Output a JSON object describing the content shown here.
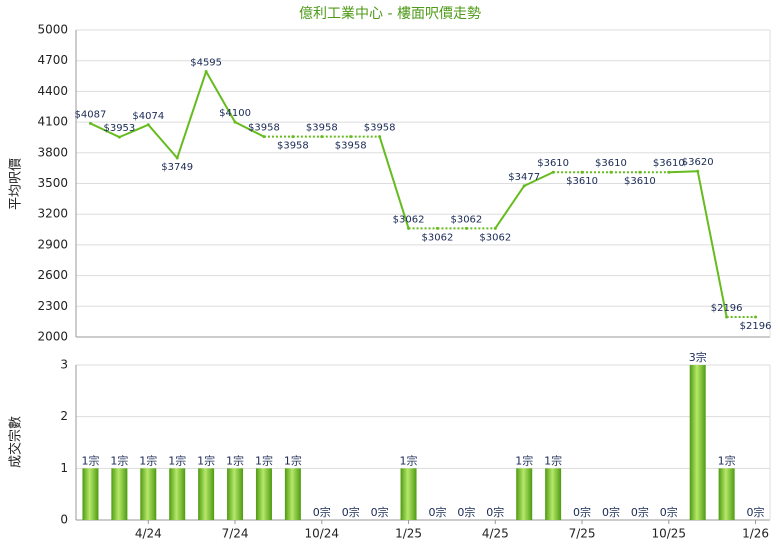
{
  "chart_data": [
    {
      "type": "line",
      "title": "億利工業中心 - 樓面呎價走勢",
      "y_label": "平均呎價",
      "color": "#66bb1e",
      "values": [
        4087,
        3953,
        4074,
        3749,
        4595,
        4100,
        3958,
        3958,
        3958,
        3958,
        3958,
        3062,
        3062,
        3062,
        3062,
        3477,
        3610,
        3610,
        3610,
        3610,
        3610,
        3620,
        2196,
        2196
      ],
      "value_labels": [
        "$4087",
        "$3953",
        "$4074",
        "$3749",
        "$4595",
        "$4100",
        "$3958",
        "$3958",
        "$3958",
        "$3958",
        "$3958",
        "$3062",
        "$3062",
        "$3062",
        "$3062",
        "$3477",
        "$3610",
        "$3610",
        "$3610",
        "$3610",
        "$3610",
        "$3620",
        "$2196",
        "$2196"
      ],
      "ylim": [
        2000,
        5000
      ],
      "yticks": [
        2000,
        2300,
        2600,
        2900,
        3200,
        3500,
        3800,
        4100,
        4400,
        4700,
        5000
      ],
      "grid": true
    },
    {
      "type": "bar",
      "y_label": "成交宗數",
      "color": "#6fbf22",
      "categories": [
        null,
        null,
        "4/24",
        null,
        null,
        "7/24",
        null,
        null,
        "10/24",
        null,
        null,
        "1/25",
        null,
        null,
        "4/25",
        null,
        null,
        "7/25",
        null,
        null,
        "10/25",
        null,
        null,
        "1/26"
      ],
      "values": [
        1,
        1,
        1,
        1,
        1,
        1,
        1,
        1,
        0,
        0,
        0,
        1,
        0,
        0,
        0,
        1,
        1,
        0,
        0,
        0,
        0,
        3,
        1,
        0
      ],
      "value_labels": [
        "1宗",
        "1宗",
        "1宗",
        "1宗",
        "1宗",
        "1宗",
        "1宗",
        "1宗",
        "0宗",
        "0宗",
        "0宗",
        "1宗",
        "0宗",
        "0宗",
        "0宗",
        "1宗",
        "1宗",
        "0宗",
        "0宗",
        "0宗",
        "0宗",
        "3宗",
        "1宗",
        "0宗"
      ],
      "ylim": [
        0,
        3
      ],
      "yticks": [
        0,
        1,
        2,
        3
      ],
      "grid": true
    }
  ]
}
